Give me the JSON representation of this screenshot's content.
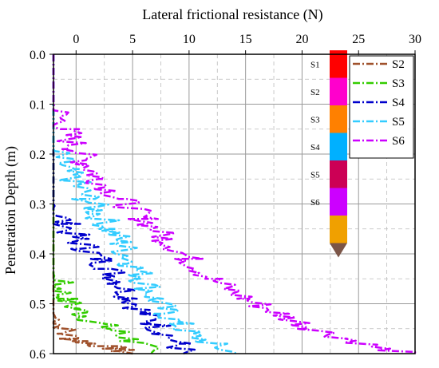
{
  "chart_data": {
    "type": "line",
    "title": "",
    "xlabel": "Lateral frictional resistance (N)",
    "ylabel": "Penetration Depth (m)",
    "xlim": [
      -2,
      30
    ],
    "ylim": [
      0.0,
      0.6
    ],
    "x_axis_position": "top",
    "y_axis_inverted": true,
    "xticks": [
      0,
      5,
      10,
      15,
      20,
      25,
      30
    ],
    "yticks": [
      0.0,
      0.1,
      0.2,
      0.3,
      0.4,
      0.5,
      0.6
    ],
    "ytick_labels": [
      "0.0",
      "0.1",
      "0.2",
      "0.3",
      "0.4",
      "0.5",
      "0.6"
    ],
    "grid": true,
    "legend_position": "right",
    "series": [
      {
        "name": "S2",
        "color": "#a0522d",
        "points": [
          [
            -2,
            0.0
          ],
          [
            -2,
            0.52
          ],
          [
            -1.5,
            0.54
          ],
          [
            -1,
            0.56
          ],
          [
            -0.3,
            0.57
          ],
          [
            0.5,
            0.575
          ],
          [
            1.5,
            0.58
          ],
          [
            2.5,
            0.585
          ],
          [
            3.5,
            0.59
          ],
          [
            4,
            0.595
          ],
          [
            4.5,
            0.6
          ]
        ]
      },
      {
        "name": "S3",
        "color": "#33cc00",
        "points": [
          [
            -2,
            0.0
          ],
          [
            -2,
            0.44
          ],
          [
            -1.5,
            0.47
          ],
          [
            -1,
            0.49
          ],
          [
            0,
            0.51
          ],
          [
            1,
            0.525
          ],
          [
            2,
            0.54
          ],
          [
            3,
            0.55
          ],
          [
            4,
            0.56
          ],
          [
            5,
            0.575
          ],
          [
            6,
            0.59
          ],
          [
            6.5,
            0.6
          ]
        ]
      },
      {
        "name": "S4",
        "color": "#0000cc",
        "points": [
          [
            -2,
            0.0
          ],
          [
            -2,
            0.3
          ],
          [
            -1,
            0.34
          ],
          [
            0,
            0.37
          ],
          [
            1,
            0.39
          ],
          [
            2,
            0.41
          ],
          [
            3,
            0.43
          ],
          [
            4,
            0.46
          ],
          [
            5,
            0.49
          ],
          [
            6,
            0.52
          ],
          [
            7,
            0.54
          ],
          [
            8,
            0.56
          ],
          [
            9,
            0.58
          ],
          [
            9.5,
            0.6
          ]
        ]
      },
      {
        "name": "S5",
        "color": "#33ccff",
        "points": [
          [
            -2,
            0.0
          ],
          [
            -2,
            0.19
          ],
          [
            -1,
            0.23
          ],
          [
            0,
            0.26
          ],
          [
            1,
            0.29
          ],
          [
            2,
            0.32
          ],
          [
            3,
            0.35
          ],
          [
            4,
            0.38
          ],
          [
            5,
            0.42
          ],
          [
            6,
            0.45
          ],
          [
            7,
            0.49
          ],
          [
            8,
            0.52
          ],
          [
            9,
            0.54
          ],
          [
            10,
            0.56
          ],
          [
            12,
            0.58
          ],
          [
            14,
            0.6
          ]
        ]
      },
      {
        "name": "S6",
        "color": "#cc00ff",
        "points": [
          [
            -2,
            0.0
          ],
          [
            -2,
            0.1
          ],
          [
            -1,
            0.15
          ],
          [
            0,
            0.19
          ],
          [
            1,
            0.22
          ],
          [
            2,
            0.25
          ],
          [
            4,
            0.29
          ],
          [
            6,
            0.33
          ],
          [
            8,
            0.37
          ],
          [
            10,
            0.41
          ],
          [
            12,
            0.45
          ],
          [
            15,
            0.49
          ],
          [
            18,
            0.52
          ],
          [
            21,
            0.55
          ],
          [
            24,
            0.57
          ],
          [
            27,
            0.59
          ],
          [
            30,
            0.6
          ]
        ]
      }
    ],
    "probe": {
      "segments": [
        {
          "label": "S1",
          "color": "#ff0000"
        },
        {
          "label": "S2",
          "color": "#ff00cc"
        },
        {
          "label": "S3",
          "color": "#ff8000"
        },
        {
          "label": "S4",
          "color": "#00b0ff"
        },
        {
          "label": "S5",
          "color": "#cc0055"
        },
        {
          "label": "S6",
          "color": "#cc00ff"
        },
        {
          "label": "",
          "color": "#f0a000"
        }
      ],
      "tip_color": "#7b5547"
    }
  }
}
